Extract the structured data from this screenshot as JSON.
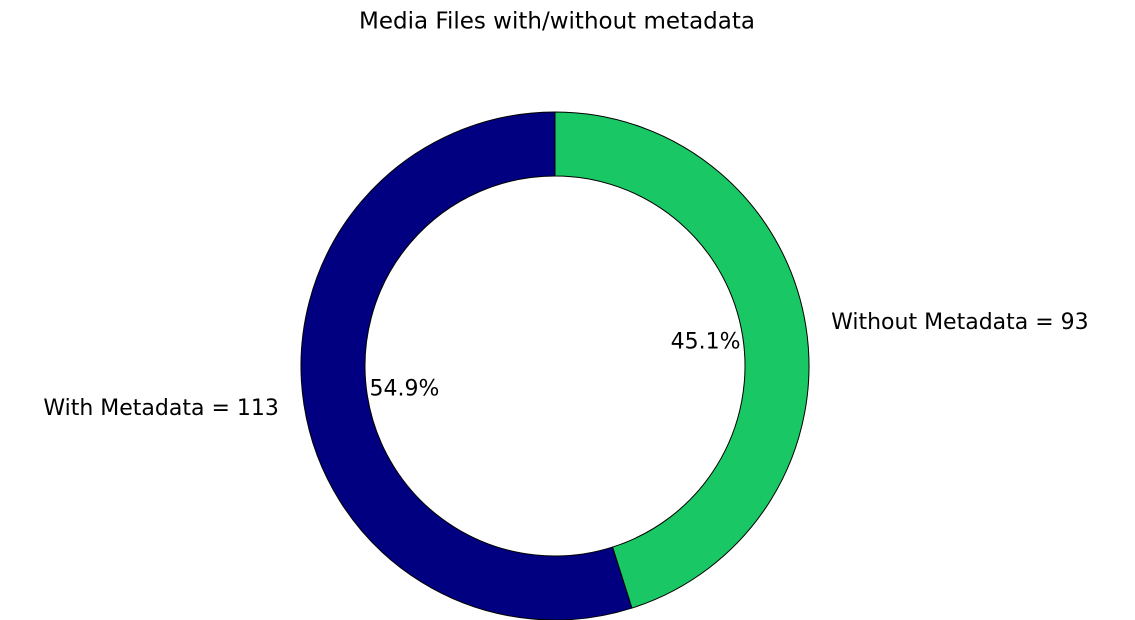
{
  "chart_data": {
    "type": "donut",
    "title": "Media Files with/without metadata",
    "categories": [
      "With Metadata = 113",
      "Without Metadata = 93"
    ],
    "values": [
      54.9,
      45.1
    ],
    "value_labels": [
      "54.9%",
      "45.1%"
    ],
    "colors": [
      "#000080",
      "#19c864"
    ],
    "start_angle": 90
  }
}
